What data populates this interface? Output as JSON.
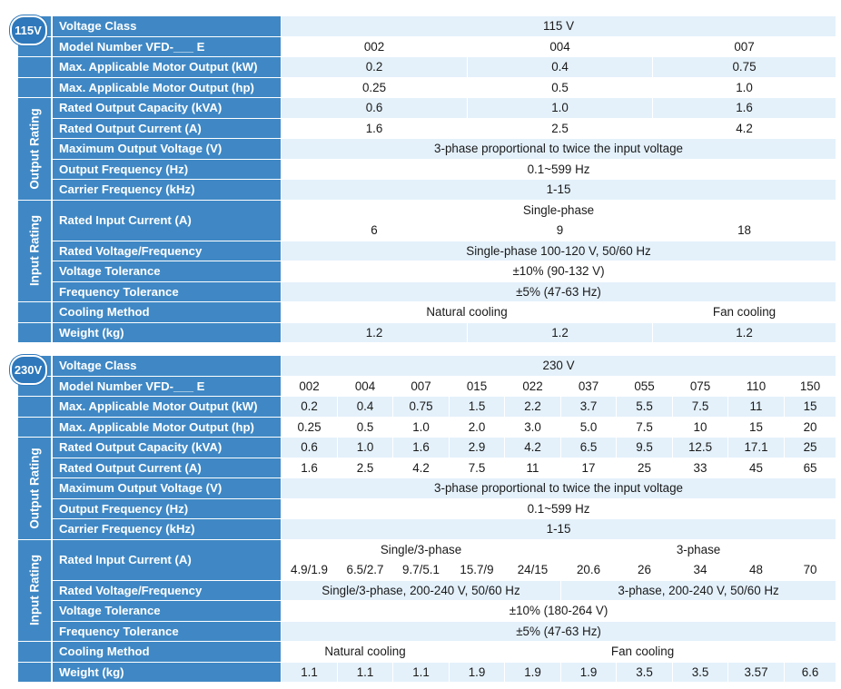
{
  "tables": {
    "t115": {
      "badge": "115V",
      "bands": {
        "output": "Output Rating",
        "input": "Input Rating"
      },
      "labels": {
        "voltage_class": "Voltage Class",
        "model": "Model Number VFD-___ E",
        "motor_kw": "Max. Applicable Motor Output (kW)",
        "motor_hp": "Max. Applicable Motor Output (hp)",
        "capacity": "Rated Output Capacity (kVA)",
        "out_current": "Rated Output Current (A)",
        "max_voltage": "Maximum Output Voltage (V)",
        "out_freq": "Output Frequency (Hz)",
        "carrier": "Carrier Frequency (kHz)",
        "in_current": "Rated Input Current (A)",
        "rated_vf": "Rated Voltage/Frequency",
        "v_tol": "Voltage Tolerance",
        "f_tol": "Frequency Tolerance",
        "cooling": "Cooling Method",
        "weight": "Weight (kg)"
      },
      "voltage_class": "115 V",
      "models": [
        "002",
        "004",
        "007"
      ],
      "motor_kw": [
        "0.2",
        "0.4",
        "0.75"
      ],
      "motor_hp": [
        "0.25",
        "0.5",
        "1.0"
      ],
      "capacity": [
        "0.6",
        "1.0",
        "1.6"
      ],
      "out_current": [
        "1.6",
        "2.5",
        "4.2"
      ],
      "max_voltage": "3-phase proportional to twice the input voltage",
      "out_freq": "0.1~599 Hz",
      "carrier": "1-15",
      "in_phase": "Single-phase",
      "in_current": [
        "6",
        "9",
        "18"
      ],
      "rated_vf": "Single-phase 100-120 V, 50/60 Hz",
      "v_tol": "±10% (90-132 V)",
      "f_tol": "±5% (47-63 Hz)",
      "cooling": {
        "natural": "Natural cooling",
        "fan": "Fan cooling"
      },
      "weight": [
        "1.2",
        "1.2",
        "1.2"
      ]
    },
    "t230": {
      "badge": "230V",
      "bands": {
        "output": "Output Rating",
        "input": "Input Rating"
      },
      "labels": {
        "voltage_class": "Voltage Class",
        "model": "Model Number VFD-___ E",
        "motor_kw": "Max. Applicable Motor Output (kW)",
        "motor_hp": "Max. Applicable Motor Output (hp)",
        "capacity": "Rated Output Capacity (kVA)",
        "out_current": "Rated Output Current (A)",
        "max_voltage": "Maximum Output Voltage (V)",
        "out_freq": "Output Frequency (Hz)",
        "carrier": "Carrier Frequency (kHz)",
        "in_current": "Rated Input Current (A)",
        "rated_vf": "Rated Voltage/Frequency",
        "v_tol": "Voltage Tolerance",
        "f_tol": "Frequency Tolerance",
        "cooling": "Cooling Method",
        "weight": "Weight (kg)"
      },
      "voltage_class": "230 V",
      "models": [
        "002",
        "004",
        "007",
        "015",
        "022",
        "037",
        "055",
        "075",
        "110",
        "150"
      ],
      "motor_kw": [
        "0.2",
        "0.4",
        "0.75",
        "1.5",
        "2.2",
        "3.7",
        "5.5",
        "7.5",
        "11",
        "15"
      ],
      "motor_hp": [
        "0.25",
        "0.5",
        "1.0",
        "2.0",
        "3.0",
        "5.0",
        "7.5",
        "10",
        "15",
        "20"
      ],
      "capacity": [
        "0.6",
        "1.0",
        "1.6",
        "2.9",
        "4.2",
        "6.5",
        "9.5",
        "12.5",
        "17.1",
        "25"
      ],
      "out_current": [
        "1.6",
        "2.5",
        "4.2",
        "7.5",
        "11",
        "17",
        "25",
        "33",
        "45",
        "65"
      ],
      "max_voltage": "3-phase proportional to twice the input voltage",
      "out_freq": "0.1~599 Hz",
      "carrier": "1-15",
      "in_phase_a": "Single/3-phase",
      "in_phase_b": "3-phase",
      "in_current": [
        "4.9/1.9",
        "6.5/2.7",
        "9.7/5.1",
        "15.7/9",
        "24/15",
        "20.6",
        "26",
        "34",
        "48",
        "70"
      ],
      "rated_vf_a": "Single/3-phase, 200-240 V, 50/60 Hz",
      "rated_vf_b": "3-phase, 200-240 V, 50/60 Hz",
      "v_tol": "±10% (180-264 V)",
      "f_tol": "±5% (47-63 Hz)",
      "cooling": {
        "natural": "Natural cooling",
        "fan": "Fan cooling"
      },
      "weight": [
        "1.1",
        "1.1",
        "1.1",
        "1.9",
        "1.9",
        "1.9",
        "3.5",
        "3.5",
        "3.57",
        "6.6"
      ]
    }
  },
  "colors": {
    "header_blue": "#3f88c5",
    "badge_blue": "#2e78bb",
    "stripe": "#e4f1fb"
  }
}
